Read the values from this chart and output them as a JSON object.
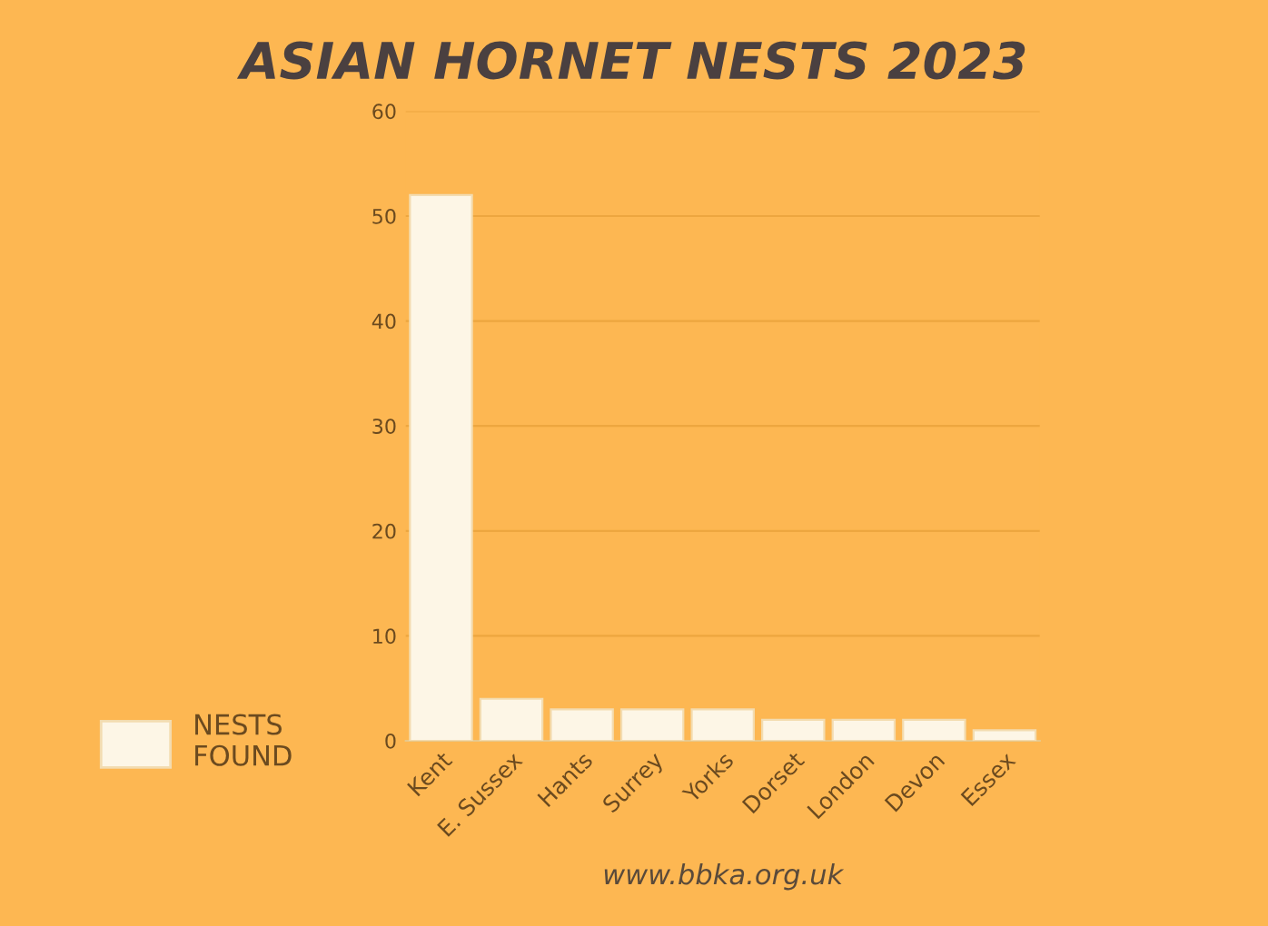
{
  "chart_data": {
    "type": "bar",
    "title": "ASIAN HORNET NESTS 2023",
    "categories": [
      "Kent",
      "E. Sussex",
      "Hants",
      "Surrey",
      "Yorks",
      "Dorset",
      "London",
      "Devon",
      "Essex"
    ],
    "series": [
      {
        "name": "NESTS\nFOUND",
        "color": "#fdf6e6",
        "values": [
          52,
          4,
          3,
          3,
          3,
          2,
          2,
          2,
          1
        ]
      }
    ],
    "ylim": [
      0,
      60
    ],
    "yticks": [
      0,
      10,
      20,
      30,
      40,
      50,
      60
    ],
    "grid": "y",
    "legend": "bottom left",
    "annotations": [
      "www.bbka.org.uk"
    ]
  }
}
